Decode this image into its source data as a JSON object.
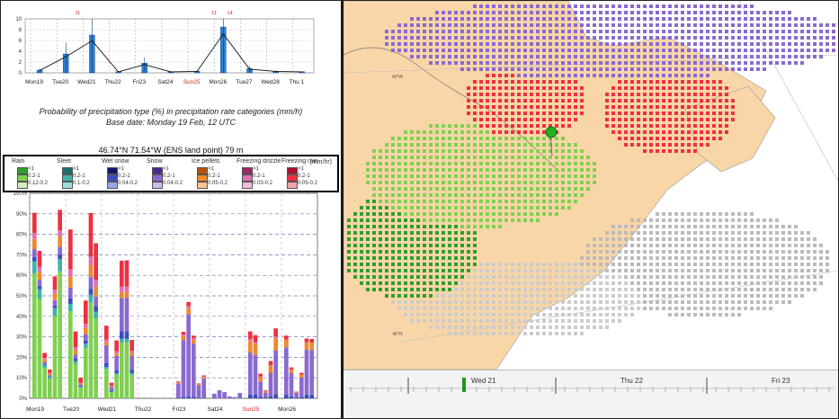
{
  "top_panel": {
    "x_labels": [
      "Mon19",
      "Tue20",
      "Wed21",
      "Thu22",
      "Fri23",
      "Sat24",
      "Sun25",
      "Mon26",
      "Tue27",
      "Wed28",
      "Thu 1"
    ],
    "highlight_label": "Sun25",
    "highlight_color": "#d62020",
    "y_ticks": [
      "0",
      "2",
      "4",
      "6",
      "8",
      "10"
    ],
    "over_labels": [
      "11",
      "11",
      "14"
    ],
    "caption_line1": "Probability of precipitation type (%) in precipitation rate categories (mm/h)",
    "caption_line2": "Base date: Monday 19 Feb, 12 UTC",
    "location": "46.74°N 71.54°W (ENS land point) 79 m"
  },
  "legend": {
    "unit": "(mm/hr)",
    "groups": [
      {
        "name": "Rain",
        "labels": [
          ">1",
          "0.2-1",
          "0.12-0.2"
        ],
        "colors": [
          "#2f9e2f",
          "#80d050",
          "#cfeec0"
        ]
      },
      {
        "name": "Sleet",
        "labels": [
          ">1",
          "0.2-1",
          "0.1-0.2"
        ],
        "colors": [
          "#1c6f6a",
          "#3fb3a8",
          "#9be0d8"
        ]
      },
      {
        "name": "Wet snow",
        "labels": [
          ">1",
          "0.2-1",
          "0.04-0.2"
        ],
        "colors": [
          "#101a6a",
          "#3a4ec0",
          "#9aa6e8"
        ]
      },
      {
        "name": "Snow",
        "labels": [
          ">1",
          "0.2-1",
          "0.04-0.2"
        ],
        "colors": [
          "#4b2a8f",
          "#8a6ad0",
          "#cbbcee"
        ]
      },
      {
        "name": "Ice pellets",
        "labels": [
          ">1",
          "0.2-1",
          "0.05-0.2"
        ],
        "colors": [
          "#b8520e",
          "#f0882c",
          "#f8c490"
        ]
      },
      {
        "name": "Freezing drizzle",
        "labels": [
          ">1",
          "0.2-1",
          "0.03-0.2"
        ],
        "colors": [
          "#a02868",
          "#e070b0",
          "#f4bcd8"
        ]
      },
      {
        "name": "Freezing rain",
        "labels": [
          ">1",
          "0.2-1",
          "0.05-0.2"
        ],
        "colors": [
          "#b01030",
          "#ee3040",
          "#f8a0a8"
        ]
      }
    ]
  },
  "bottom_panel": {
    "y_ticks": [
      "0%",
      "10%",
      "20%",
      "30%",
      "40%",
      "50%",
      "60%",
      "70%",
      "80%",
      "90%",
      "100%"
    ],
    "x_labels": [
      "Mon19",
      "Tue20",
      "Wed21",
      "Thu22",
      "Fri23",
      "Sat24",
      "Sun25",
      "Mon26"
    ],
    "highlight_label": "Sun25"
  },
  "map_panel": {
    "land_color": "#f8d6a8",
    "water_color": "#ffffff",
    "lat_labels": [
      "40°W",
      "40°N"
    ],
    "timeline_labels": [
      "Wed 21",
      "Thu 22",
      "Fri 23"
    ],
    "marker_color": "#20b020"
  },
  "chart_data": [
    {
      "type": "bar",
      "title": "",
      "xlabel": "",
      "ylabel": "",
      "ylim": [
        0,
        10
      ],
      "categories": [
        "Mon19",
        "Tue20",
        "Wed21",
        "Thu22",
        "Fri23",
        "Sat24",
        "Sun25",
        "Mon26",
        "Tue27",
        "Wed28",
        "Thu 1"
      ],
      "series": [
        {
          "values": [
            0.5,
            3.5,
            7.0,
            0.2,
            1.8,
            0.2,
            0.3,
            8.5,
            0.8,
            0.3,
            0.2
          ]
        }
      ]
    },
    {
      "type": "bar",
      "title": "",
      "xlabel": "",
      "ylabel": "",
      "ylim": [
        0,
        100
      ],
      "categories": [
        "Mon19",
        "Tue20",
        "Wed21",
        "Thu22",
        "Fri23",
        "Sat24",
        "Sun25",
        "Mon26"
      ],
      "series": [
        {
          "name": "Rain",
          "values": [
            62,
            48,
            30,
            0,
            0,
            0,
            0,
            0
          ]
        },
        {
          "name": "Sleet",
          "values": [
            6,
            4,
            2,
            0,
            0,
            0,
            0,
            0
          ]
        },
        {
          "name": "Wet snow",
          "values": [
            2,
            3,
            4,
            0,
            1,
            0,
            2,
            2
          ]
        },
        {
          "name": "Snow",
          "values": [
            4,
            6,
            18,
            0,
            40,
            4,
            22,
            24
          ]
        },
        {
          "name": "Ice pellets",
          "values": [
            5,
            6,
            3,
            0,
            3,
            0,
            6,
            4
          ]
        },
        {
          "name": "Freezing drizzle",
          "values": [
            3,
            4,
            3,
            0,
            1,
            0,
            1,
            0
          ]
        },
        {
          "name": "Freezing rain",
          "values": [
            10,
            22,
            14,
            0,
            2,
            0,
            4,
            2
          ]
        }
      ]
    }
  ]
}
